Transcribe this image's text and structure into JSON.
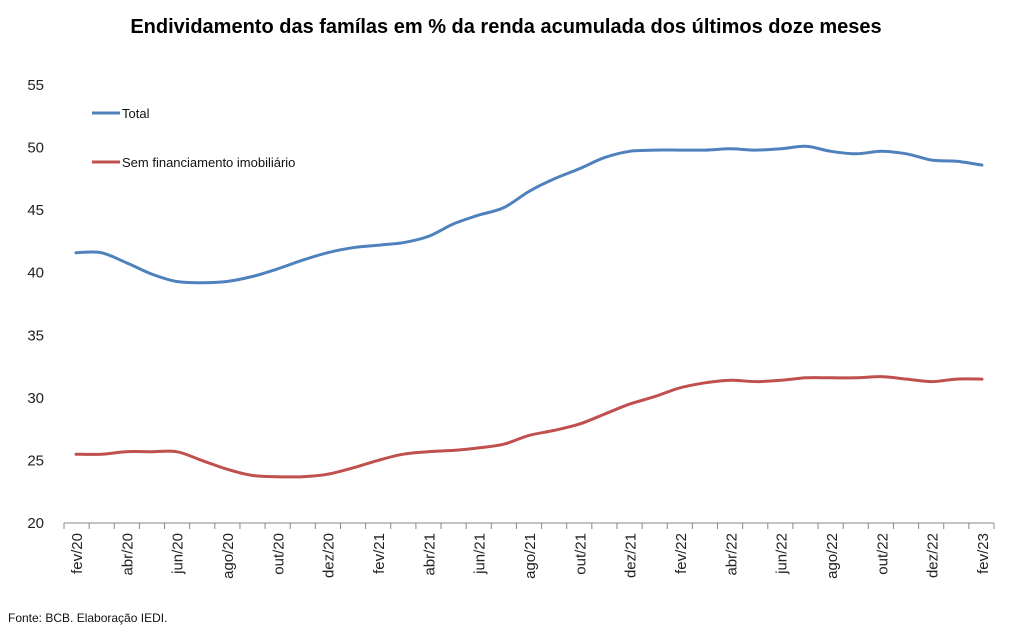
{
  "chart_data": {
    "type": "line",
    "title": "Endividamento das famílas em % da renda acumulada dos últimos doze meses",
    "xlabel": "",
    "ylabel": "",
    "ylim": [
      20,
      55
    ],
    "yticks": [
      20,
      25,
      30,
      35,
      40,
      45,
      50,
      55
    ],
    "grid": false,
    "legend_position": "top-left",
    "x": [
      "fev/20",
      "mar/20",
      "abr/20",
      "mai/20",
      "jun/20",
      "jul/20",
      "ago/20",
      "set/20",
      "out/20",
      "nov/20",
      "dez/20",
      "jan/21",
      "fev/21",
      "mar/21",
      "abr/21",
      "mai/21",
      "jun/21",
      "jul/21",
      "ago/21",
      "set/21",
      "out/21",
      "nov/21",
      "dez/21",
      "jan/22",
      "fev/22",
      "mar/22",
      "abr/22",
      "mai/22",
      "jun/22",
      "jul/22",
      "ago/22",
      "set/22",
      "out/22",
      "nov/22",
      "dez/22",
      "jan/23",
      "fev/23"
    ],
    "x_tick_labels": [
      "fev/20",
      "abr/20",
      "jun/20",
      "ago/20",
      "out/20",
      "dez/20",
      "fev/21",
      "abr/21",
      "jun/21",
      "ago/21",
      "out/21",
      "dez/21",
      "fev/22",
      "abr/22",
      "jun/22",
      "ago/22",
      "out/22",
      "dez/22",
      "fev/23"
    ],
    "series": [
      {
        "name": "Total",
        "color": "#4f81bd",
        "values": [
          41.6,
          41.6,
          40.8,
          39.9,
          39.3,
          39.2,
          39.3,
          39.7,
          40.3,
          41.0,
          41.6,
          42.0,
          42.2,
          42.4,
          42.9,
          43.9,
          44.6,
          45.2,
          46.5,
          47.5,
          48.3,
          49.2,
          49.7,
          49.8,
          49.8,
          49.8,
          49.9,
          49.8,
          49.9,
          50.1,
          49.7,
          49.5,
          49.7,
          49.5,
          49.0,
          48.9,
          48.6
        ]
      },
      {
        "name": "Sem financiamento imobiliário",
        "color": "#c0504d",
        "values": [
          25.5,
          25.5,
          25.7,
          25.7,
          25.7,
          25.0,
          24.3,
          23.8,
          23.7,
          23.7,
          23.9,
          24.4,
          25.0,
          25.5,
          25.7,
          25.8,
          26.0,
          26.3,
          27.0,
          27.4,
          27.9,
          28.7,
          29.5,
          30.1,
          30.8,
          31.2,
          31.4,
          31.3,
          31.4,
          31.6,
          31.6,
          31.6,
          31.7,
          31.5,
          31.3,
          31.5,
          31.5
        ]
      }
    ]
  },
  "source": "Fonte: BCB. Elaboração IEDI."
}
